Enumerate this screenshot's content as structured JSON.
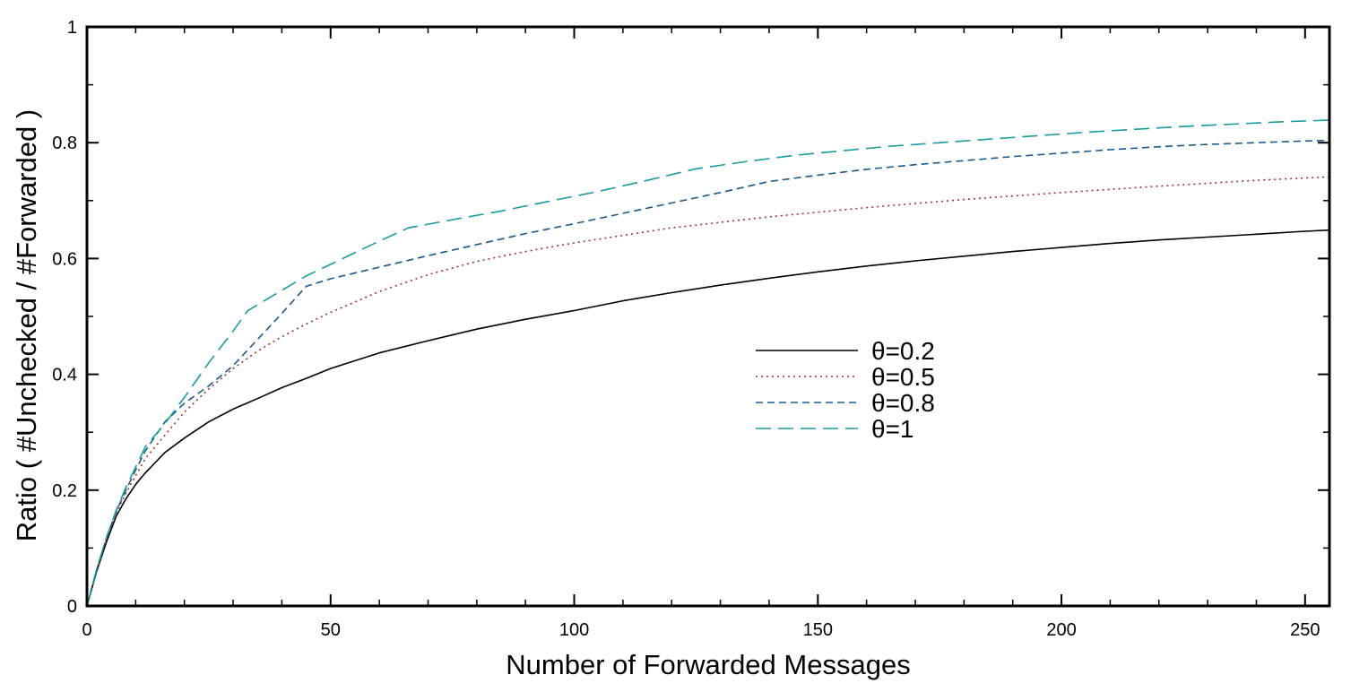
{
  "chart_data": {
    "type": "line",
    "title": "",
    "xlabel": "Number of Forwarded Messages",
    "ylabel": "Ratio  ( #Unchecked / #Forwarded )",
    "xlim": [
      0,
      255
    ],
    "ylim": [
      0,
      1
    ],
    "xticks": [
      0,
      50,
      100,
      150,
      200,
      250
    ],
    "xtick_labels": [
      "0",
      "50",
      "100",
      "150",
      "200",
      "250"
    ],
    "yticks": [
      0,
      0.2,
      0.4,
      0.6,
      0.8,
      1
    ],
    "ytick_labels": [
      "0",
      "0.2",
      "0.4",
      "0.6",
      "0.8",
      "1"
    ],
    "x_minor_step": 10,
    "y_minor_step": 0.1,
    "grid": false,
    "legend_position": "center-right",
    "series": [
      {
        "name": "θ=0.2",
        "color": "#000000",
        "dash": "solid",
        "points": [
          [
            0,
            0
          ],
          [
            2,
            0.06
          ],
          [
            4,
            0.11
          ],
          [
            6,
            0.155
          ],
          [
            8,
            0.185
          ],
          [
            10,
            0.21
          ],
          [
            12,
            0.23
          ],
          [
            16,
            0.265
          ],
          [
            20,
            0.29
          ],
          [
            25,
            0.318
          ],
          [
            30,
            0.34
          ],
          [
            35,
            0.358
          ],
          [
            40,
            0.377
          ],
          [
            45,
            0.393
          ],
          [
            50,
            0.41
          ],
          [
            60,
            0.437
          ],
          [
            70,
            0.458
          ],
          [
            80,
            0.478
          ],
          [
            90,
            0.495
          ],
          [
            100,
            0.51
          ],
          [
            110,
            0.527
          ],
          [
            120,
            0.541
          ],
          [
            130,
            0.554
          ],
          [
            140,
            0.566
          ],
          [
            150,
            0.577
          ],
          [
            160,
            0.587
          ],
          [
            170,
            0.596
          ],
          [
            180,
            0.604
          ],
          [
            190,
            0.612
          ],
          [
            200,
            0.619
          ],
          [
            210,
            0.626
          ],
          [
            220,
            0.632
          ],
          [
            230,
            0.637
          ],
          [
            240,
            0.642
          ],
          [
            250,
            0.647
          ],
          [
            255,
            0.649
          ]
        ]
      },
      {
        "name": "θ=0.5",
        "color": "#a0302a",
        "dash": "dotted",
        "points": [
          [
            0,
            0
          ],
          [
            2,
            0.062
          ],
          [
            4,
            0.115
          ],
          [
            6,
            0.16
          ],
          [
            8,
            0.195
          ],
          [
            10,
            0.225
          ],
          [
            12,
            0.255
          ],
          [
            16,
            0.295
          ],
          [
            20,
            0.335
          ],
          [
            25,
            0.375
          ],
          [
            30,
            0.41
          ],
          [
            35,
            0.44
          ],
          [
            40,
            0.465
          ],
          [
            45,
            0.487
          ],
          [
            50,
            0.507
          ],
          [
            60,
            0.543
          ],
          [
            70,
            0.572
          ],
          [
            80,
            0.595
          ],
          [
            90,
            0.612
          ],
          [
            100,
            0.627
          ],
          [
            120,
            0.653
          ],
          [
            140,
            0.672
          ],
          [
            160,
            0.688
          ],
          [
            180,
            0.702
          ],
          [
            200,
            0.714
          ],
          [
            220,
            0.725
          ],
          [
            240,
            0.735
          ],
          [
            255,
            0.741
          ]
        ]
      },
      {
        "name": "θ=0.8",
        "color": "#1a5a8a",
        "dash": "dashed",
        "points": [
          [
            0,
            0
          ],
          [
            2,
            0.063
          ],
          [
            4,
            0.117
          ],
          [
            6,
            0.163
          ],
          [
            8,
            0.2
          ],
          [
            10,
            0.235
          ],
          [
            12,
            0.268
          ],
          [
            16,
            0.318
          ],
          [
            20,
            0.35
          ],
          [
            25,
            0.38
          ],
          [
            30,
            0.415
          ],
          [
            35,
            0.46
          ],
          [
            40,
            0.505
          ],
          [
            45,
            0.552
          ],
          [
            50,
            0.565
          ],
          [
            60,
            0.585
          ],
          [
            70,
            0.605
          ],
          [
            80,
            0.624
          ],
          [
            90,
            0.643
          ],
          [
            100,
            0.66
          ],
          [
            110,
            0.678
          ],
          [
            120,
            0.696
          ],
          [
            130,
            0.714
          ],
          [
            140,
            0.733
          ],
          [
            150,
            0.744
          ],
          [
            160,
            0.754
          ],
          [
            170,
            0.762
          ],
          [
            180,
            0.769
          ],
          [
            190,
            0.776
          ],
          [
            200,
            0.782
          ],
          [
            210,
            0.788
          ],
          [
            220,
            0.793
          ],
          [
            230,
            0.797
          ],
          [
            240,
            0.8
          ],
          [
            250,
            0.803
          ],
          [
            255,
            0.804
          ]
        ]
      },
      {
        "name": "θ=1",
        "color": "#1a9a9f",
        "dash": "longdash",
        "points": [
          [
            0,
            0
          ],
          [
            2,
            0.064
          ],
          [
            4,
            0.118
          ],
          [
            6,
            0.165
          ],
          [
            8,
            0.205
          ],
          [
            10,
            0.24
          ],
          [
            12,
            0.275
          ],
          [
            16,
            0.315
          ],
          [
            20,
            0.36
          ],
          [
            25,
            0.42
          ],
          [
            30,
            0.475
          ],
          [
            33,
            0.51
          ],
          [
            40,
            0.545
          ],
          [
            45,
            0.57
          ],
          [
            50,
            0.59
          ],
          [
            55,
            0.61
          ],
          [
            60,
            0.63
          ],
          [
            66,
            0.653
          ],
          [
            75,
            0.667
          ],
          [
            85,
            0.682
          ],
          [
            95,
            0.699
          ],
          [
            105,
            0.716
          ],
          [
            115,
            0.735
          ],
          [
            125,
            0.755
          ],
          [
            135,
            0.767
          ],
          [
            145,
            0.778
          ],
          [
            155,
            0.786
          ],
          [
            165,
            0.794
          ],
          [
            175,
            0.8
          ],
          [
            185,
            0.806
          ],
          [
            195,
            0.812
          ],
          [
            205,
            0.818
          ],
          [
            215,
            0.823
          ],
          [
            225,
            0.828
          ],
          [
            235,
            0.832
          ],
          [
            245,
            0.836
          ],
          [
            255,
            0.839
          ]
        ]
      }
    ]
  }
}
